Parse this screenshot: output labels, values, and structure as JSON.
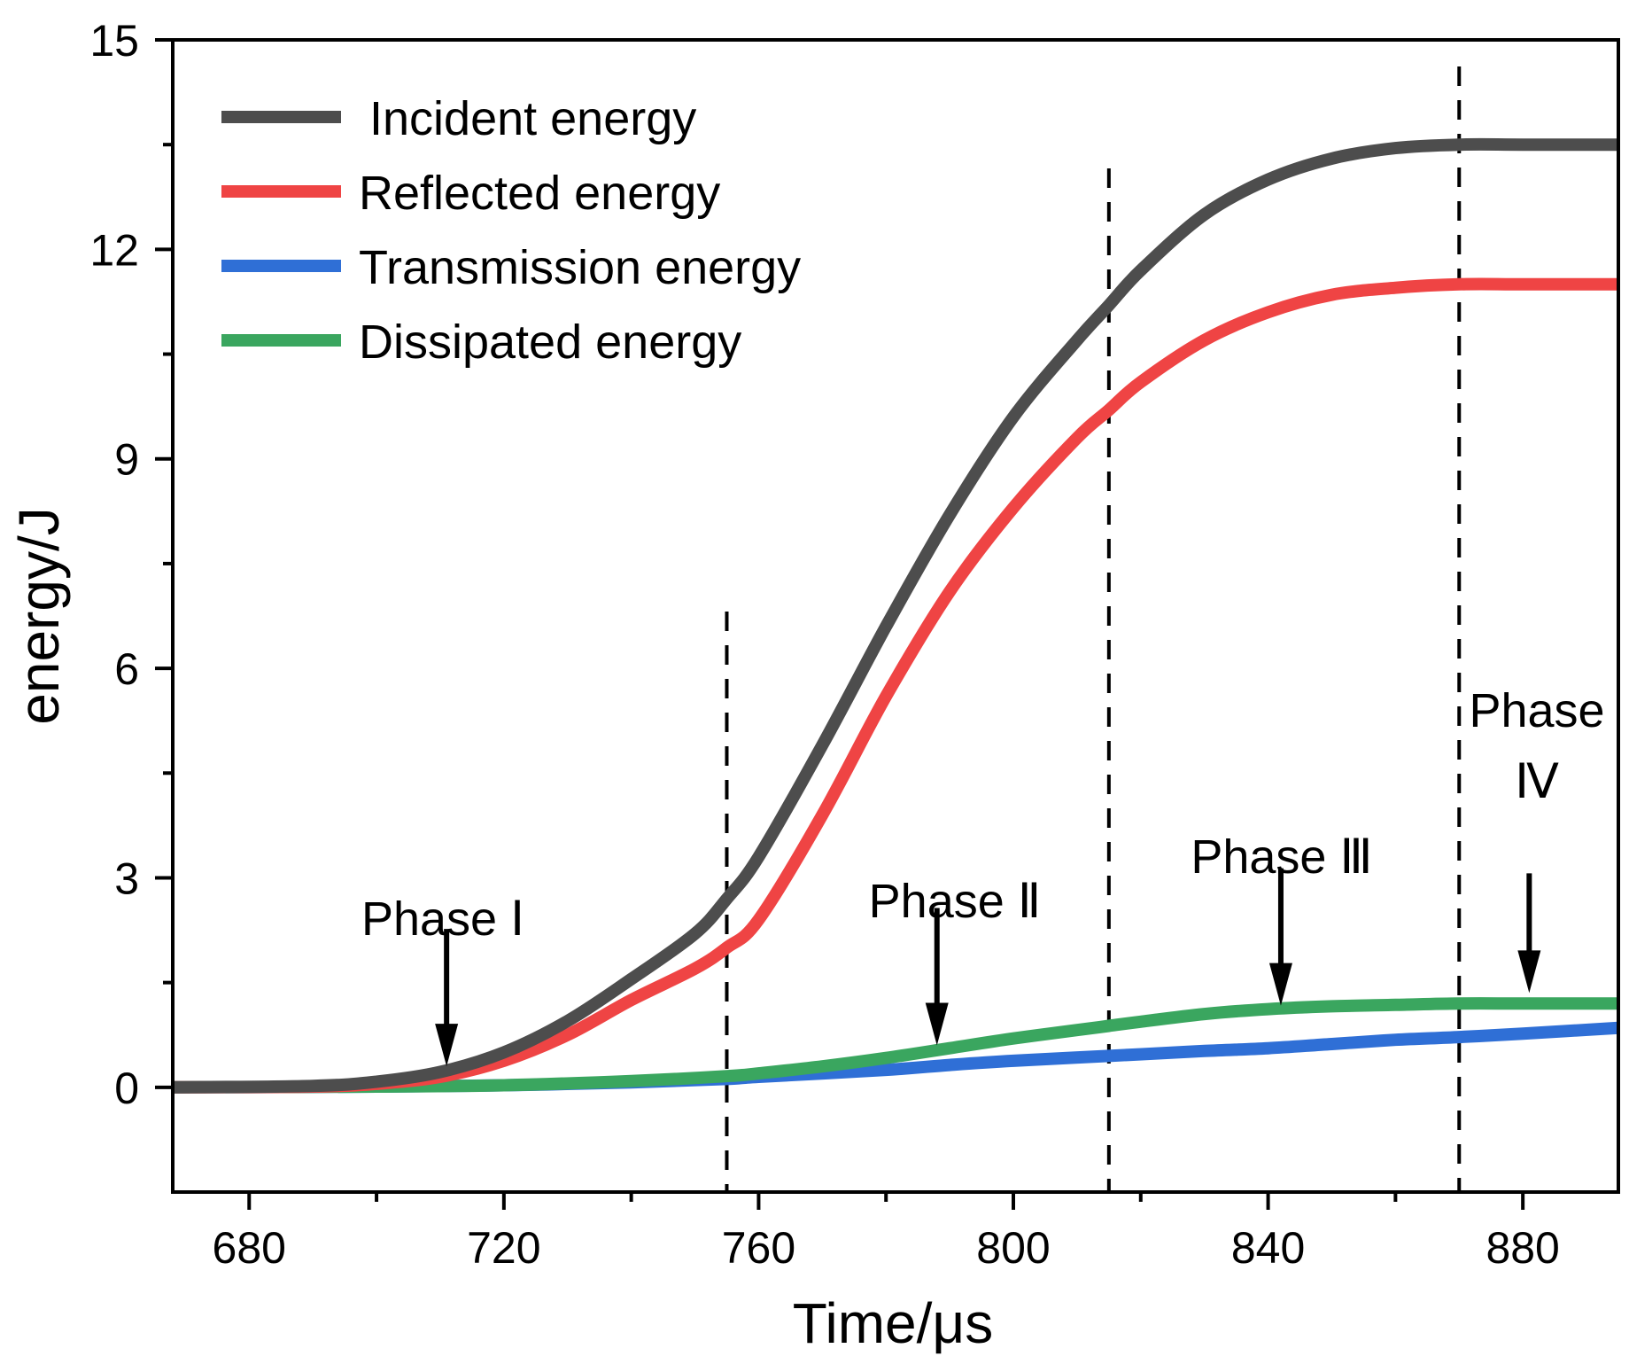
{
  "chart_data": {
    "type": "line",
    "xlabel": "Time/μs",
    "ylabel": "energy/J",
    "xlim": [
      668,
      895
    ],
    "ylim": [
      -1.5,
      15
    ],
    "xticks": [
      680,
      720,
      760,
      800,
      840,
      880
    ],
    "xtick_labels": [
      "680",
      "720",
      "760",
      "800",
      "840",
      "880"
    ],
    "yticks": [
      0,
      3,
      6,
      9,
      12,
      15
    ],
    "ytick_labels": [
      "0",
      "3",
      "6",
      "9",
      "12",
      "15"
    ],
    "grid": false,
    "legend_position": "top-left",
    "series": [
      {
        "name": "Incident energy",
        "color": "#4d4d4d",
        "x": [
          668,
          690,
          700,
          710,
          720,
          730,
          740,
          750,
          755,
          760,
          770,
          780,
          790,
          800,
          810,
          815,
          820,
          830,
          840,
          850,
          860,
          870,
          880,
          895
        ],
        "y": [
          0.0,
          0.02,
          0.08,
          0.22,
          0.5,
          0.95,
          1.55,
          2.2,
          2.7,
          3.3,
          4.9,
          6.6,
          8.2,
          9.6,
          10.7,
          11.2,
          11.7,
          12.5,
          13.0,
          13.3,
          13.45,
          13.5,
          13.5,
          13.5
        ]
      },
      {
        "name": "Reflected energy",
        "color": "#ef4444",
        "x": [
          668,
          690,
          700,
          710,
          720,
          730,
          740,
          750,
          755,
          760,
          770,
          780,
          790,
          800,
          810,
          815,
          820,
          830,
          840,
          850,
          860,
          870,
          880,
          895
        ],
        "y": [
          0.0,
          0.01,
          0.05,
          0.15,
          0.38,
          0.75,
          1.25,
          1.7,
          2.0,
          2.4,
          3.9,
          5.6,
          7.1,
          8.3,
          9.3,
          9.7,
          10.1,
          10.7,
          11.1,
          11.35,
          11.45,
          11.5,
          11.5,
          11.5
        ]
      },
      {
        "name": "Transmission energy",
        "color": "#2f6fd6",
        "x": [
          668,
          700,
          720,
          740,
          755,
          760,
          780,
          790,
          800,
          815,
          830,
          840,
          850,
          860,
          870,
          880,
          895
        ],
        "y": [
          0.0,
          0.01,
          0.03,
          0.07,
          0.12,
          0.15,
          0.25,
          0.32,
          0.38,
          0.45,
          0.52,
          0.56,
          0.62,
          0.68,
          0.72,
          0.77,
          0.85
        ]
      },
      {
        "name": "Dissipated energy",
        "color": "#3aa65f",
        "x": [
          668,
          700,
          720,
          740,
          755,
          760,
          770,
          780,
          790,
          800,
          810,
          815,
          820,
          830,
          840,
          850,
          860,
          870,
          880,
          895
        ],
        "y": [
          0.0,
          0.01,
          0.03,
          0.09,
          0.16,
          0.2,
          0.3,
          0.42,
          0.56,
          0.7,
          0.82,
          0.88,
          0.94,
          1.05,
          1.12,
          1.16,
          1.18,
          1.2,
          1.2,
          1.2
        ]
      }
    ],
    "phase_boundaries": [
      755,
      815,
      870
    ],
    "annotations": [
      {
        "lines": [
          "Phase Ⅰ"
        ],
        "arrow_x": 711,
        "arrow_y": 0.25
      },
      {
        "lines": [
          "Phase Ⅱ"
        ],
        "arrow_x": 788,
        "arrow_y": 0.55
      },
      {
        "lines": [
          "Phase Ⅲ"
        ],
        "arrow_x": 842,
        "arrow_y": 1.12
      },
      {
        "lines": [
          "Phase",
          "Ⅳ"
        ],
        "arrow_x": 881,
        "arrow_y": 1.3
      }
    ]
  }
}
